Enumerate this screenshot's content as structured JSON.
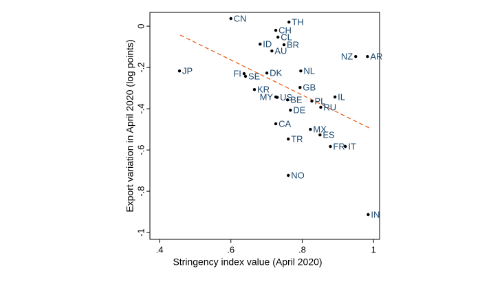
{
  "chart_data": {
    "type": "scatter",
    "x_label": "Stringency index value (April 2020)",
    "y_label": "Export variation in April 2020 (log points)",
    "point_labels": [
      "CN",
      "TH",
      "CH",
      "CL",
      "ID",
      "BR",
      "AU",
      "NZ",
      "AR",
      "JP",
      "NL",
      "FI",
      "DK",
      "SE",
      "GB",
      "KR",
      "IL",
      "MY",
      "US",
      "BE",
      "PL",
      "RU",
      "DE",
      "CA",
      "MX",
      "ES",
      "TR",
      "FR",
      "IT",
      "NO",
      "IN"
    ],
    "x": [
      0.6,
      0.763,
      0.726,
      0.732,
      0.682,
      0.749,
      0.715,
      0.95,
      0.983,
      0.456,
      0.796,
      0.637,
      0.701,
      0.641,
      0.794,
      0.666,
      0.892,
      0.726,
      0.73,
      0.759,
      0.827,
      0.852,
      0.767,
      0.726,
      0.823,
      0.85,
      0.761,
      0.879,
      0.921,
      0.761,
      0.985
    ],
    "y": [
      0.037,
      0.02,
      -0.02,
      -0.053,
      -0.087,
      -0.09,
      -0.12,
      -0.147,
      -0.147,
      -0.217,
      -0.217,
      -0.23,
      -0.227,
      -0.243,
      -0.297,
      -0.307,
      -0.343,
      -0.343,
      -0.345,
      -0.357,
      -0.363,
      -0.393,
      -0.407,
      -0.473,
      -0.5,
      -0.527,
      -0.547,
      -0.583,
      -0.583,
      -0.723,
      -0.913
    ],
    "color": "#000000",
    "label_color": "#1a476f",
    "fit_line": {
      "x": [
        0.458,
        0.988
      ],
      "y": [
        -0.043,
        -0.493
      ],
      "color": "#e8601c"
    },
    "xlim": [
      0.373,
      1.017
    ],
    "ylim": [
      -1.033,
      0.067
    ],
    "xticks": [
      {
        "value": 0.4,
        "label": ".4"
      },
      {
        "value": 0.6,
        "label": ".6"
      },
      {
        "value": 0.8,
        "label": ".8"
      },
      1
    ],
    "yticks": [
      0,
      {
        "value": -0.2,
        "label": "-.2"
      },
      {
        "value": -0.4,
        "label": "-.4"
      },
      {
        "value": -0.6,
        "label": "-.6"
      },
      {
        "value": -0.8,
        "label": "-.8"
      },
      -1
    ]
  }
}
